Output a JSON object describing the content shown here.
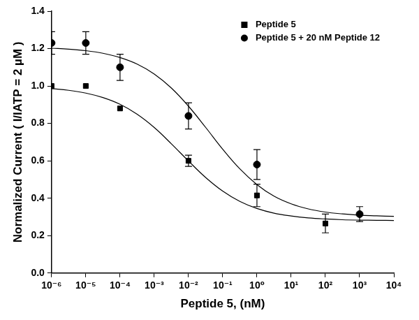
{
  "chart_data": {
    "type": "scatter",
    "x_label": "Peptide 5, (nM)",
    "y_label": "Normalized Current ( I/IATP = 2 µM )",
    "log": "x",
    "grid": false,
    "legend": "upper right",
    "xlim": [
      1e-06,
      10000.0
    ],
    "xticks": [
      {
        "value": 1e-06,
        "label": "10⁻⁶"
      },
      {
        "value": 1e-05,
        "label": "10⁻⁵"
      },
      {
        "value": 0.0001,
        "label": "10⁻⁴"
      },
      {
        "value": 0.001,
        "label": "10⁻³"
      },
      {
        "value": 0.01,
        "label": "10⁻²"
      },
      {
        "value": 0.1,
        "label": "10⁻¹"
      },
      {
        "value": 1,
        "label": "10⁰"
      },
      {
        "value": 10,
        "label": "10¹"
      },
      {
        "value": 100,
        "label": "10²"
      },
      {
        "value": 1000,
        "label": "10³"
      },
      {
        "value": 10000,
        "label": "10⁴"
      }
    ],
    "ylim": [
      0,
      1.4
    ],
    "yticks": [
      {
        "value": 0,
        "label": "0.0"
      },
      0.2,
      0.4,
      0.6,
      0.8,
      {
        "value": 1,
        "label": "1.0"
      },
      1.2,
      1.4
    ],
    "series": [
      {
        "name": "Peptide 5",
        "color": "#000000",
        "marker": "square",
        "x": [
          1e-06,
          1e-05,
          0.0001,
          0.01,
          1,
          100
        ],
        "values": [
          1.0,
          1.0,
          0.88,
          0.6,
          0.415,
          0.265
        ],
        "errors": [
          0,
          0,
          0,
          0.03,
          0.06,
          0.05
        ],
        "fit": {
          "x": [
            1e-06,
            3.162e-06,
            1e-05,
            3.162e-05,
            0.0001,
            0.0003162,
            0.001,
            0.003162,
            0.01,
            0.03162,
            0.1,
            0.3162,
            1,
            3.162,
            10,
            31.62,
            100,
            316.2,
            1000,
            3162,
            10000
          ],
          "values": [
            0.986,
            0.977,
            0.962,
            0.938,
            0.902,
            0.849,
            0.778,
            0.691,
            0.599,
            0.511,
            0.438,
            0.383,
            0.345,
            0.32,
            0.305,
            0.295,
            0.289,
            0.285,
            0.283,
            0.282,
            0.281
          ]
        }
      },
      {
        "name": "Peptide 5 + 20 nM Peptide 12",
        "color": "#000000",
        "marker": "circle",
        "x": [
          1e-06,
          1e-05,
          0.0001,
          0.01,
          1,
          1000
        ],
        "values": [
          1.23,
          1.23,
          1.1,
          0.84,
          0.58,
          0.315
        ],
        "errors": [
          0.06,
          0.06,
          0.07,
          0.07,
          0.08,
          0.04
        ],
        "fit": {
          "x": [
            1e-06,
            3.162e-06,
            1e-05,
            3.162e-05,
            0.0001,
            0.0003162,
            0.001,
            0.003162,
            0.01,
            0.03162,
            0.1,
            0.3162,
            1,
            3.162,
            10,
            31.62,
            100,
            316.2,
            1000,
            3162,
            10000
          ],
          "values": [
            1.202,
            1.197,
            1.189,
            1.175,
            1.152,
            1.117,
            1.064,
            0.989,
            0.892,
            0.779,
            0.662,
            0.557,
            0.473,
            0.411,
            0.37,
            0.343,
            0.326,
            0.316,
            0.309,
            0.306,
            0.303
          ]
        }
      }
    ]
  }
}
